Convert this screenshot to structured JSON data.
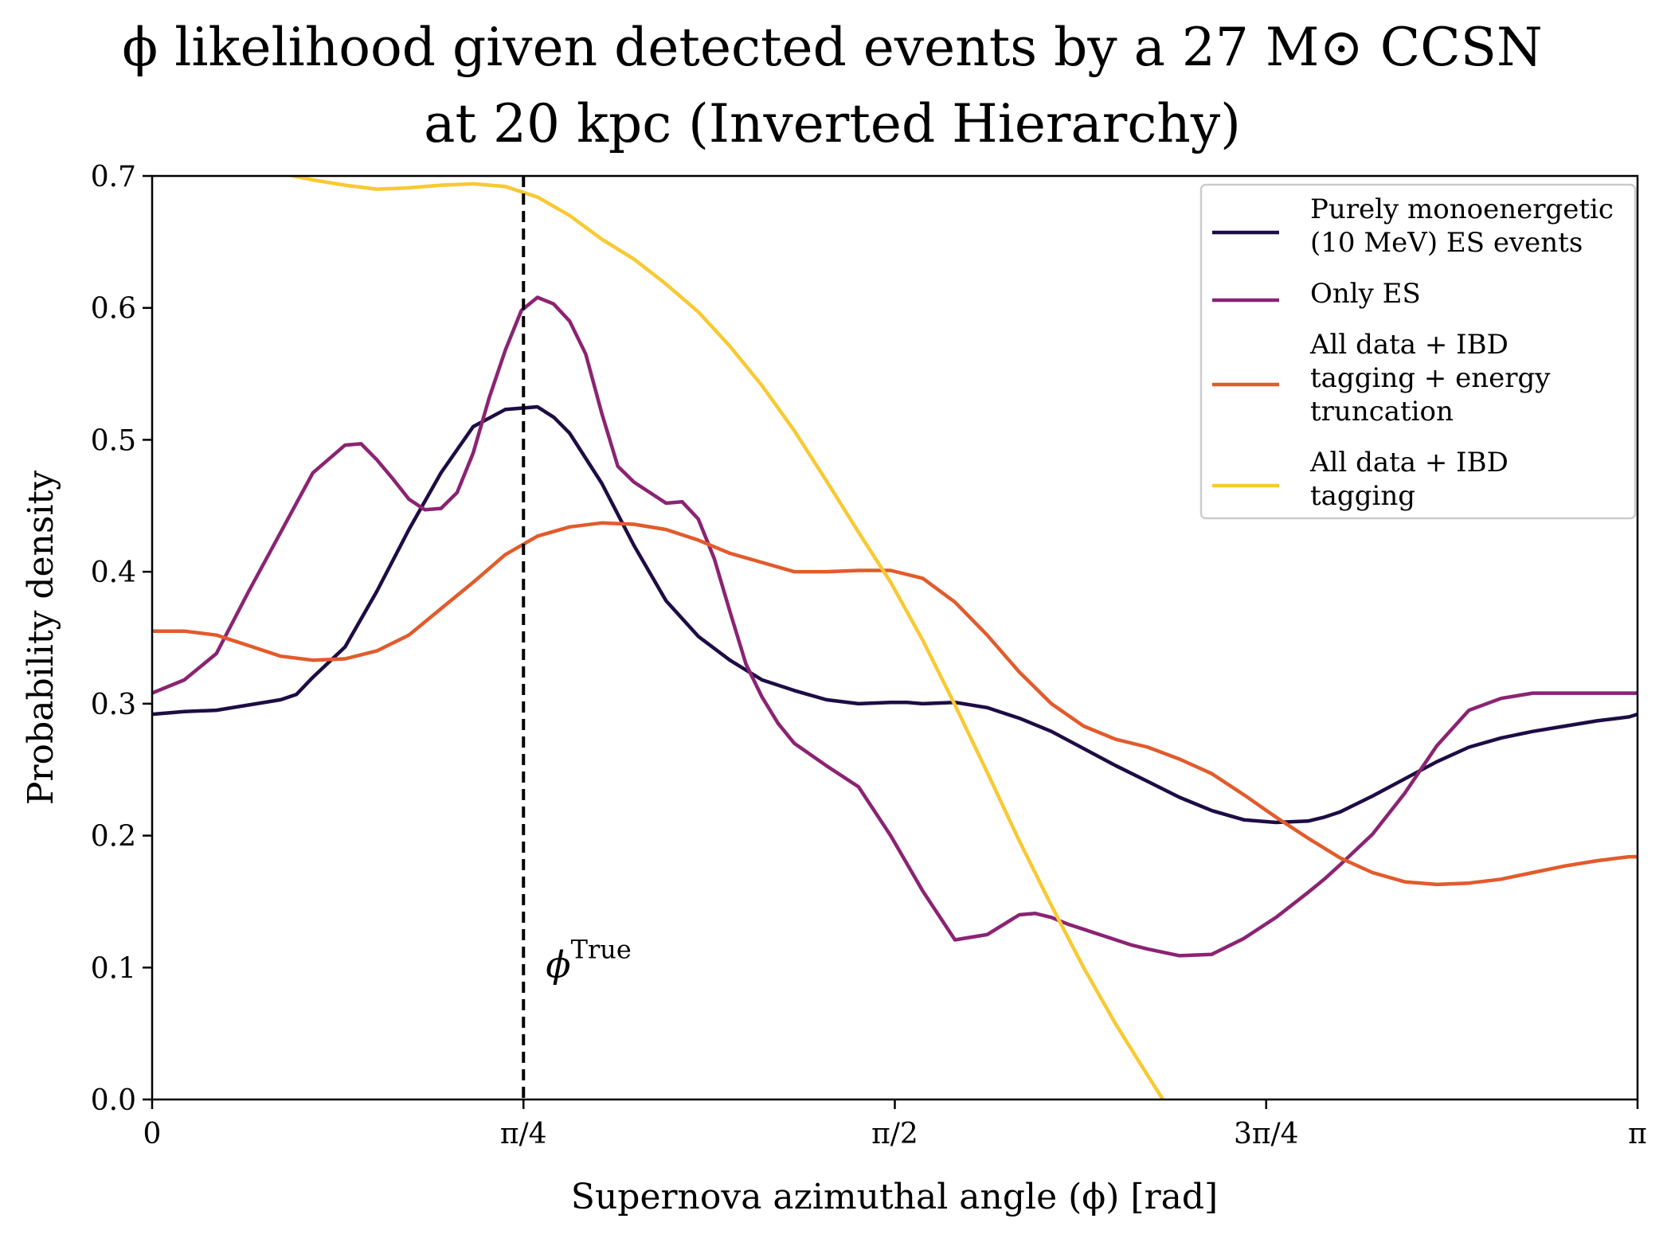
{
  "chart_data": {
    "type": "line",
    "title_lines": [
      "ϕ likelihood given detected events by a 27 M⊙ CCSN",
      "at 20 kpc (Inverted Hierarchy)"
    ],
    "xlabel": "Supernova azimuthal angle (ϕ) [rad]",
    "ylabel": "Probability density",
    "xlim": [
      0,
      3.14159
    ],
    "ylim": [
      0,
      0.7
    ],
    "grid": false,
    "legend_position": "top-right",
    "x_ticks": [
      {
        "value": 0,
        "label": "0"
      },
      {
        "value": 0.7854,
        "label": "π/4"
      },
      {
        "value": 1.5708,
        "label": "π/2"
      },
      {
        "value": 2.3562,
        "label": "3π/4"
      },
      {
        "value": 3.14159,
        "label": "π"
      }
    ],
    "y_ticks": [
      {
        "value": 0.0,
        "label": "0.0"
      },
      {
        "value": 0.1,
        "label": "0.1"
      },
      {
        "value": 0.2,
        "label": "0.2"
      },
      {
        "value": 0.3,
        "label": "0.3"
      },
      {
        "value": 0.4,
        "label": "0.4"
      },
      {
        "value": 0.5,
        "label": "0.5"
      },
      {
        "value": 0.6,
        "label": "0.6"
      },
      {
        "value": 0.7,
        "label": "0.7"
      }
    ],
    "annotation": {
      "text": "ϕ",
      "superscript": "True",
      "x": 0.7854,
      "style": "dashed",
      "color": "#000000"
    },
    "series": [
      {
        "name_lines": [
          "Purely monoenergetic",
          "(10 MeV) ES events"
        ],
        "color": "#1e0c45",
        "x": [
          0,
          0.068,
          0.136,
          0.204,
          0.272,
          0.305,
          0.34,
          0.408,
          0.475,
          0.543,
          0.611,
          0.679,
          0.747,
          0.815,
          0.85,
          0.883,
          0.951,
          1.019,
          1.087,
          1.155,
          1.222,
          1.29,
          1.358,
          1.426,
          1.494,
          1.562,
          1.596,
          1.63,
          1.698,
          1.766,
          1.834,
          1.902,
          1.97,
          2.038,
          2.106,
          2.173,
          2.241,
          2.309,
          2.377,
          2.445,
          2.479,
          2.513,
          2.581,
          2.649,
          2.717,
          2.785,
          2.853,
          2.92,
          2.988,
          3.056,
          3.124,
          3.14159
        ],
        "values": [
          0.292,
          0.294,
          0.295,
          0.299,
          0.303,
          0.307,
          0.32,
          0.343,
          0.385,
          0.432,
          0.475,
          0.51,
          0.523,
          0.525,
          0.517,
          0.505,
          0.467,
          0.42,
          0.378,
          0.351,
          0.333,
          0.318,
          0.31,
          0.303,
          0.3,
          0.301,
          0.301,
          0.3,
          0.301,
          0.297,
          0.289,
          0.279,
          0.266,
          0.253,
          0.241,
          0.229,
          0.219,
          0.212,
          0.21,
          0.211,
          0.214,
          0.218,
          0.23,
          0.243,
          0.256,
          0.267,
          0.274,
          0.279,
          0.283,
          0.287,
          0.29,
          0.292
        ]
      },
      {
        "name_lines": [
          "Only ES"
        ],
        "color": "#8b2373",
        "x": [
          0,
          0.068,
          0.136,
          0.204,
          0.272,
          0.34,
          0.408,
          0.442,
          0.475,
          0.51,
          0.543,
          0.577,
          0.611,
          0.645,
          0.679,
          0.713,
          0.747,
          0.781,
          0.815,
          0.849,
          0.883,
          0.917,
          0.951,
          0.985,
          1.019,
          1.053,
          1.087,
          1.121,
          1.155,
          1.189,
          1.222,
          1.256,
          1.29,
          1.324,
          1.358,
          1.426,
          1.494,
          1.562,
          1.63,
          1.698,
          1.766,
          1.834,
          1.868,
          1.902,
          1.936,
          1.97,
          2.004,
          2.038,
          2.072,
          2.106,
          2.173,
          2.241,
          2.309,
          2.377,
          2.445,
          2.479,
          2.513,
          2.581,
          2.649,
          2.717,
          2.785,
          2.853,
          2.92,
          2.988,
          3.022,
          3.056,
          3.09,
          3.14159
        ],
        "values": [
          0.308,
          0.318,
          0.338,
          0.385,
          0.43,
          0.475,
          0.496,
          0.497,
          0.485,
          0.47,
          0.455,
          0.447,
          0.448,
          0.46,
          0.49,
          0.532,
          0.568,
          0.598,
          0.608,
          0.603,
          0.59,
          0.565,
          0.52,
          0.48,
          0.468,
          0.46,
          0.452,
          0.453,
          0.44,
          0.41,
          0.37,
          0.33,
          0.305,
          0.285,
          0.27,
          0.253,
          0.237,
          0.2,
          0.158,
          0.121,
          0.125,
          0.14,
          0.141,
          0.138,
          0.133,
          0.129,
          0.125,
          0.121,
          0.117,
          0.114,
          0.109,
          0.11,
          0.122,
          0.138,
          0.157,
          0.167,
          0.178,
          0.201,
          0.232,
          0.268,
          0.295,
          0.304,
          0.308,
          0.308,
          0.308,
          0.308,
          0.308,
          0.308
        ]
      },
      {
        "name_lines": [
          "All data + IBD",
          "tagging + energy",
          "truncation"
        ],
        "color": "#e25b2c",
        "x": [
          0,
          0.068,
          0.136,
          0.204,
          0.272,
          0.34,
          0.408,
          0.475,
          0.543,
          0.611,
          0.679,
          0.747,
          0.815,
          0.883,
          0.951,
          1.019,
          1.087,
          1.155,
          1.222,
          1.29,
          1.358,
          1.426,
          1.494,
          1.562,
          1.63,
          1.698,
          1.766,
          1.834,
          1.902,
          1.97,
          2.038,
          2.106,
          2.173,
          2.241,
          2.309,
          2.377,
          2.445,
          2.513,
          2.581,
          2.649,
          2.717,
          2.785,
          2.853,
          2.92,
          2.988,
          3.056,
          3.124,
          3.14159
        ],
        "values": [
          0.355,
          0.355,
          0.352,
          0.344,
          0.336,
          0.333,
          0.334,
          0.34,
          0.352,
          0.372,
          0.392,
          0.413,
          0.427,
          0.434,
          0.437,
          0.436,
          0.432,
          0.424,
          0.414,
          0.407,
          0.4,
          0.4,
          0.401,
          0.401,
          0.395,
          0.377,
          0.352,
          0.324,
          0.3,
          0.283,
          0.273,
          0.267,
          0.258,
          0.247,
          0.231,
          0.214,
          0.198,
          0.183,
          0.172,
          0.165,
          0.163,
          0.164,
          0.167,
          0.172,
          0.177,
          0.181,
          0.184,
          0.184
        ]
      },
      {
        "name_lines": [
          "All data + IBD",
          "tagging"
        ],
        "color": "#f8c932",
        "x": [
          0,
          0.068,
          0.136,
          0.204,
          0.272,
          0.34,
          0.408,
          0.475,
          0.543,
          0.611,
          0.679,
          0.747,
          0.815,
          0.883,
          0.951,
          1.019,
          1.087,
          1.155,
          1.222,
          1.29,
          1.358,
          1.426,
          1.494,
          1.562,
          1.63,
          1.698,
          1.766,
          1.834,
          1.902,
          1.97,
          2.038,
          2.106,
          2.173,
          2.2,
          2.21
        ],
        "values": [
          0.73,
          0.725,
          0.718,
          0.71,
          0.702,
          0.697,
          0.693,
          0.69,
          0.691,
          0.693,
          0.694,
          0.692,
          0.684,
          0.67,
          0.652,
          0.637,
          0.618,
          0.597,
          0.571,
          0.541,
          0.507,
          0.469,
          0.43,
          0.392,
          0.348,
          0.299,
          0.248,
          0.196,
          0.147,
          0.1,
          0.057,
          0.018,
          -0.02,
          -0.035,
          -0.04
        ]
      }
    ]
  }
}
